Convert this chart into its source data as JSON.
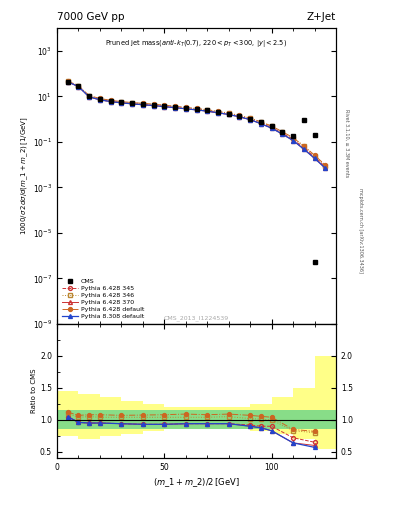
{
  "title_left": "7000 GeV pp",
  "title_right": "Z+Jet",
  "watermark": "CMS_2013_I1224539",
  "right_label1": "Rivet 3.1.10, ≥ 3.3M events",
  "right_label2": "mcplots.cern.ch [arXiv:1306.3436]",
  "cms_x": [
    5,
    10,
    15,
    20,
    25,
    30,
    35,
    40,
    45,
    50,
    55,
    60,
    65,
    70,
    75,
    80,
    85,
    90,
    95,
    100,
    105,
    110,
    115,
    120
  ],
  "cms_y": [
    42,
    28,
    10,
    7.5,
    6.2,
    5.5,
    5.0,
    4.6,
    4.2,
    3.8,
    3.4,
    3.0,
    2.7,
    2.4,
    2.0,
    1.7,
    1.35,
    1.05,
    0.72,
    0.48,
    0.28,
    0.18,
    0.9,
    0.2
  ],
  "cms_special_x": [
    120
  ],
  "cms_special_y": [
    5e-07
  ],
  "py345_x": [
    5,
    10,
    15,
    20,
    25,
    30,
    35,
    40,
    45,
    50,
    55,
    60,
    65,
    70,
    75,
    80,
    85,
    90,
    95,
    100,
    105,
    110,
    115,
    120,
    125
  ],
  "py345_y": [
    44,
    27,
    9.5,
    7.1,
    5.9,
    5.2,
    4.7,
    4.3,
    3.95,
    3.55,
    3.2,
    2.85,
    2.55,
    2.25,
    1.9,
    1.6,
    1.27,
    0.97,
    0.65,
    0.43,
    0.24,
    0.13,
    0.055,
    0.022,
    0.008
  ],
  "py346_x": [
    5,
    10,
    15,
    20,
    25,
    30,
    35,
    40,
    45,
    50,
    55,
    60,
    65,
    70,
    75,
    80,
    85,
    90,
    95,
    100,
    105,
    110,
    115,
    120,
    125
  ],
  "py346_y": [
    46,
    29,
    10.5,
    7.8,
    6.5,
    5.7,
    5.2,
    4.8,
    4.4,
    3.95,
    3.55,
    3.15,
    2.82,
    2.5,
    2.1,
    1.78,
    1.4,
    1.07,
    0.73,
    0.48,
    0.27,
    0.15,
    0.065,
    0.025,
    0.009
  ],
  "py370_x": [
    5,
    10,
    15,
    20,
    25,
    30,
    35,
    40,
    45,
    50,
    55,
    60,
    65,
    70,
    75,
    80,
    85,
    90,
    95,
    100,
    105,
    110,
    115,
    120,
    125
  ],
  "py370_y": [
    44,
    27,
    9.5,
    7.1,
    5.9,
    5.2,
    4.7,
    4.3,
    3.95,
    3.55,
    3.2,
    2.85,
    2.55,
    2.25,
    1.9,
    1.6,
    1.27,
    0.95,
    0.63,
    0.4,
    0.22,
    0.115,
    0.048,
    0.019,
    0.007
  ],
  "pydef_x": [
    5,
    10,
    15,
    20,
    25,
    30,
    35,
    40,
    45,
    50,
    55,
    60,
    65,
    70,
    75,
    80,
    85,
    90,
    95,
    100,
    105,
    110,
    115,
    120,
    125
  ],
  "pydef_y": [
    47,
    30,
    10.8,
    8.1,
    6.7,
    5.9,
    5.35,
    4.95,
    4.55,
    4.1,
    3.7,
    3.28,
    2.94,
    2.6,
    2.19,
    1.85,
    1.46,
    1.12,
    0.76,
    0.5,
    0.28,
    0.153,
    0.066,
    0.026,
    0.0095
  ],
  "py8_x": [
    5,
    10,
    15,
    20,
    25,
    30,
    35,
    40,
    45,
    50,
    55,
    60,
    65,
    70,
    75,
    80,
    85,
    90,
    95,
    100,
    105,
    110,
    115,
    120,
    125
  ],
  "py8_y": [
    44,
    27,
    9.5,
    7.1,
    5.9,
    5.2,
    4.7,
    4.3,
    3.95,
    3.55,
    3.2,
    2.85,
    2.55,
    2.25,
    1.9,
    1.6,
    1.27,
    0.95,
    0.63,
    0.4,
    0.22,
    0.115,
    0.048,
    0.019,
    0.007
  ],
  "ratio_x": [
    5,
    10,
    15,
    20,
    30,
    40,
    50,
    60,
    70,
    80,
    90,
    95,
    100,
    110,
    120
  ],
  "ratio_py345": [
    1.05,
    0.96,
    0.95,
    0.95,
    0.94,
    0.93,
    0.93,
    0.94,
    0.94,
    0.94,
    0.92,
    0.9,
    0.9,
    0.72,
    0.65
  ],
  "ratio_py346": [
    1.1,
    1.04,
    1.05,
    1.04,
    1.04,
    1.04,
    1.04,
    1.04,
    1.04,
    1.05,
    1.02,
    1.01,
    1.0,
    0.83,
    0.8
  ],
  "ratio_py370": [
    1.05,
    0.96,
    0.95,
    0.95,
    0.94,
    0.93,
    0.93,
    0.94,
    0.94,
    0.94,
    0.9,
    0.875,
    0.83,
    0.64,
    0.6
  ],
  "ratio_pydef": [
    1.12,
    1.07,
    1.08,
    1.08,
    1.07,
    1.075,
    1.08,
    1.09,
    1.08,
    1.09,
    1.07,
    1.055,
    1.04,
    0.85,
    0.82
  ],
  "ratio_py8": [
    1.05,
    0.96,
    0.95,
    0.95,
    0.94,
    0.93,
    0.93,
    0.94,
    0.94,
    0.94,
    0.9,
    0.875,
    0.83,
    0.64,
    0.57
  ],
  "band_edges": [
    0,
    10,
    20,
    30,
    40,
    50,
    60,
    70,
    80,
    90,
    100,
    110,
    120,
    130
  ],
  "band_green_lo": [
    0.85,
    0.85,
    0.85,
    0.85,
    0.85,
    0.85,
    0.85,
    0.85,
    0.85,
    0.85,
    0.85,
    0.85,
    0.85,
    0.85
  ],
  "band_green_hi": [
    1.15,
    1.15,
    1.15,
    1.15,
    1.15,
    1.15,
    1.15,
    1.15,
    1.15,
    1.15,
    1.15,
    1.15,
    1.15,
    1.15
  ],
  "band_yellow_lo": [
    0.75,
    0.7,
    0.75,
    0.78,
    0.82,
    0.85,
    0.85,
    0.85,
    0.85,
    0.82,
    0.78,
    0.7,
    0.55,
    0.4
  ],
  "band_yellow_hi": [
    1.45,
    1.4,
    1.35,
    1.3,
    1.25,
    1.2,
    1.2,
    1.2,
    1.2,
    1.25,
    1.35,
    1.5,
    2.0,
    2.5
  ],
  "color_py345": "#cc3333",
  "color_py346": "#bb8833",
  "color_py370": "#cc3333",
  "color_pydef": "#cc6622",
  "color_py8": "#2244cc",
  "xlim": [
    0,
    130
  ],
  "ylim_main": [
    1e-09,
    10000.0
  ],
  "ylim_ratio": [
    0.4,
    2.5
  ],
  "yticks_ratio": [
    0.5,
    1.0,
    1.5,
    2.0
  ]
}
